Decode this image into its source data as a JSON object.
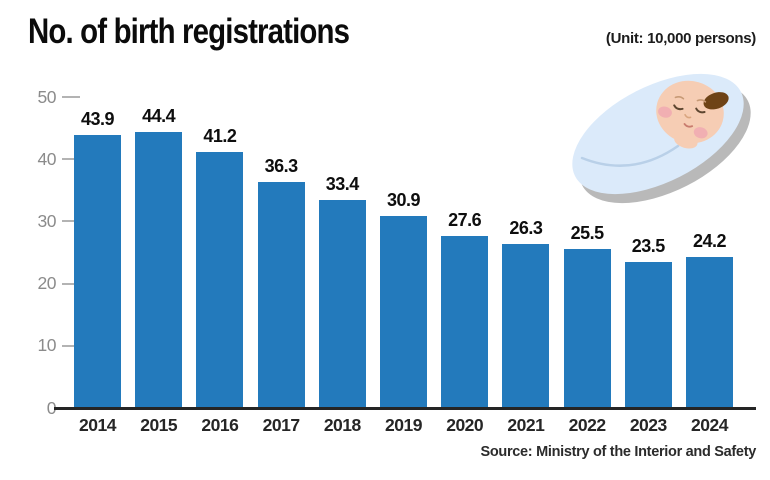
{
  "header": {
    "title": "No. of birth registrations",
    "unit_label": "(Unit: 10,000 persons)"
  },
  "footer": {
    "source": "Source: Ministry of the Interior and Safety"
  },
  "colors": {
    "bar": "#237ABC",
    "axis_tick_label": "#8b8b8b",
    "tick_mark": "#b3b3b3",
    "baseline": "#252525",
    "value_label": "#0e0e0e",
    "year_label": "#262626",
    "blanket": "#dbeafa",
    "blanket_shadow": "#b9b9b9",
    "baby_skin": "#f6cdb4",
    "baby_cheek": "#f0a9b2",
    "baby_hair": "#6e4316"
  },
  "illustration": {
    "name": "swaddled-baby"
  },
  "chart_data": {
    "type": "bar",
    "title": "No. of birth registrations",
    "unit": "10,000 persons",
    "categories": [
      "2014",
      "2015",
      "2016",
      "2017",
      "2018",
      "2019",
      "2020",
      "2021",
      "2022",
      "2023",
      "2024"
    ],
    "values": [
      43.9,
      44.4,
      41.2,
      36.3,
      33.4,
      30.9,
      27.6,
      26.3,
      25.5,
      23.5,
      24.2
    ],
    "xlabel": "",
    "ylabel": "",
    "ylim": [
      0,
      50
    ],
    "yticks": [
      0,
      10,
      20,
      30,
      40,
      50
    ],
    "grid": false,
    "legend": "none",
    "data_labels": true,
    "source": "Ministry of the Interior and Safety"
  }
}
